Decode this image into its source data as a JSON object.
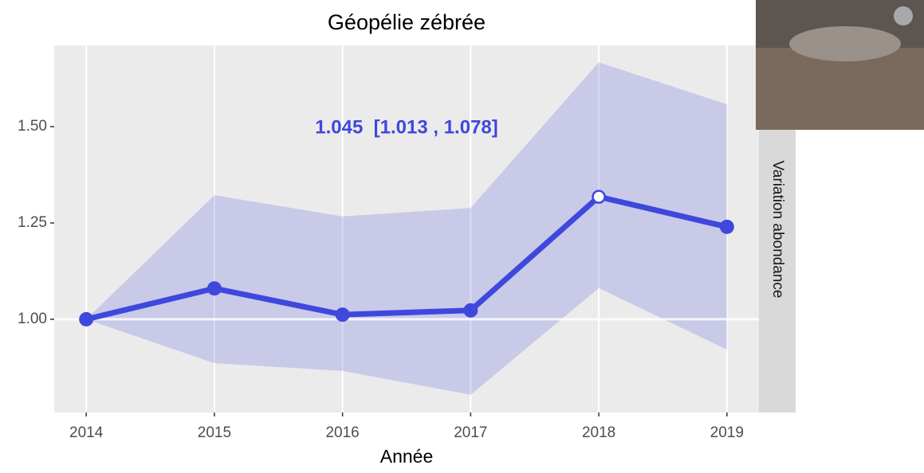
{
  "chart_data": {
    "type": "line",
    "title": "Géopélie zébrée",
    "x_label": "Année",
    "facet_label": "Variation abondance",
    "annotation": "1.045  [1.013 , 1.078]",
    "x": [
      2014,
      2015,
      2016,
      2017,
      2018,
      2019
    ],
    "series": [
      {
        "name": "Variation abondance",
        "color": "#3f48dc",
        "values": [
          1.0,
          1.08,
          1.012,
          1.023,
          1.318,
          1.24
        ],
        "upper": [
          1.0,
          1.322,
          1.267,
          1.289,
          1.667,
          1.558
        ],
        "lower": [
          1.0,
          0.886,
          0.866,
          0.804,
          1.081,
          0.921
        ],
        "open_markers": [
          false,
          false,
          false,
          false,
          true,
          false
        ]
      }
    ],
    "xlim": [
      2013.75,
      2019.25
    ],
    "ylim": [
      0.758,
      1.711
    ],
    "xticks": [
      2014,
      2015,
      2016,
      2017,
      2018,
      2019
    ],
    "yticks": [
      {
        "value": 1,
        "label": "1.00"
      },
      {
        "value": 1.25,
        "label": "1.25"
      },
      {
        "value": 1.5,
        "label": "1.50"
      }
    ],
    "reference_line": 1,
    "grid": true
  }
}
